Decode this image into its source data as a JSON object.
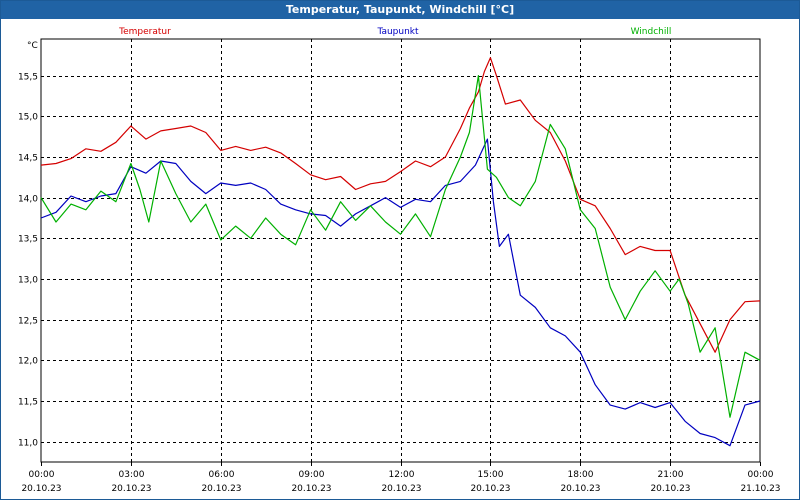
{
  "title": "Temperatur, Taupunkt, Windchill [°C]",
  "chart_data": {
    "type": "line",
    "ylabel": "°C",
    "ylim": [
      10.75,
      15.95
    ],
    "yticks": [
      11.0,
      11.5,
      12.0,
      12.5,
      13.0,
      13.5,
      14.0,
      14.5,
      15.0,
      15.5
    ],
    "ytick_labels": [
      "11,0",
      "11,5",
      "12,0",
      "12,5",
      "13,0",
      "13,5",
      "14,0",
      "14,5",
      "15,0",
      "15,5"
    ],
    "xlim": [
      0,
      24
    ],
    "xticks": [
      {
        "time": "00:00",
        "date": "20.10.23"
      },
      {
        "time": "03:00",
        "date": "20.10.23"
      },
      {
        "time": "06:00",
        "date": "20.10.23"
      },
      {
        "time": "09:00",
        "date": "20.10.23"
      },
      {
        "time": "12:00",
        "date": "20.10.23"
      },
      {
        "time": "15:00",
        "date": "20.10.23"
      },
      {
        "time": "18:00",
        "date": "20.10.23"
      },
      {
        "time": "21:00",
        "date": "20.10.23"
      },
      {
        "time": "00:00",
        "date": "21.10.23"
      }
    ],
    "grid": true,
    "series": [
      {
        "name": "Temperatur",
        "color": "#d40000",
        "x": [
          0,
          0.5,
          1,
          1.5,
          2,
          2.5,
          3,
          3.5,
          4,
          4.5,
          5,
          5.5,
          6,
          6.5,
          7,
          7.5,
          8,
          8.5,
          9,
          9.5,
          10,
          10.5,
          11,
          11.5,
          12,
          12.5,
          13,
          13.5,
          14,
          14.3,
          14.6,
          14.8,
          15,
          15.2,
          15.5,
          16,
          16.5,
          17,
          17.5,
          18,
          18.5,
          19,
          19.5,
          20,
          20.5,
          21,
          21.5,
          22,
          22.5,
          23,
          23.5,
          24
        ],
        "values": [
          14.4,
          14.42,
          14.48,
          14.6,
          14.57,
          14.68,
          14.88,
          14.72,
          14.82,
          14.85,
          14.88,
          14.8,
          14.58,
          14.63,
          14.58,
          14.62,
          14.55,
          14.42,
          14.28,
          14.22,
          14.26,
          14.1,
          14.17,
          14.2,
          14.32,
          14.45,
          14.38,
          14.5,
          14.85,
          15.1,
          15.3,
          15.55,
          15.72,
          15.5,
          15.15,
          15.2,
          14.95,
          14.8,
          14.45,
          13.98,
          13.9,
          13.62,
          13.3,
          13.4,
          13.35,
          13.35,
          12.8,
          12.45,
          12.1,
          12.5,
          12.72,
          12.73
        ]
      },
      {
        "name": "Taupunkt",
        "color": "#0000c0",
        "x": [
          0,
          0.5,
          1,
          1.5,
          2,
          2.5,
          3,
          3.5,
          4,
          4.5,
          5,
          5.5,
          6,
          6.5,
          7,
          7.5,
          8,
          8.5,
          9,
          9.5,
          10,
          10.5,
          11,
          11.5,
          12,
          12.5,
          13,
          13.5,
          14,
          14.5,
          14.9,
          15.1,
          15.3,
          15.6,
          16,
          16.5,
          17,
          17.5,
          18,
          18.5,
          19,
          19.5,
          20,
          20.5,
          21,
          21.5,
          22,
          22.5,
          23,
          23.5,
          24
        ],
        "values": [
          13.75,
          13.82,
          14.02,
          13.95,
          14.02,
          14.05,
          14.38,
          14.3,
          14.45,
          14.42,
          14.2,
          14.05,
          14.18,
          14.15,
          14.18,
          14.1,
          13.92,
          13.85,
          13.8,
          13.78,
          13.65,
          13.8,
          13.9,
          14.0,
          13.88,
          13.98,
          13.95,
          14.15,
          14.2,
          14.4,
          14.72,
          13.95,
          13.4,
          13.55,
          12.8,
          12.65,
          12.4,
          12.3,
          12.1,
          11.7,
          11.45,
          11.4,
          11.48,
          11.42,
          11.48,
          11.25,
          11.1,
          11.05,
          10.95,
          11.45,
          11.5
        ]
      },
      {
        "name": "Windchill",
        "color": "#00b000",
        "x": [
          0,
          0.5,
          1,
          1.5,
          2,
          2.5,
          3,
          3.3,
          3.6,
          4,
          4.5,
          5,
          5.5,
          6,
          6.5,
          7,
          7.5,
          8,
          8.5,
          9,
          9.5,
          10,
          10.5,
          11,
          11.5,
          12,
          12.5,
          13,
          13.5,
          14,
          14.3,
          14.6,
          14.9,
          15.2,
          15.6,
          16,
          16.5,
          17,
          17.5,
          18,
          18.5,
          19,
          19.5,
          20,
          20.5,
          21,
          21.3,
          21.6,
          22,
          22.5,
          23,
          23.5,
          24
        ],
        "values": [
          14.0,
          13.7,
          13.92,
          13.85,
          14.08,
          13.95,
          14.42,
          14.1,
          13.7,
          14.45,
          14.05,
          13.7,
          13.92,
          13.48,
          13.65,
          13.5,
          13.75,
          13.55,
          13.42,
          13.85,
          13.6,
          13.95,
          13.72,
          13.9,
          13.7,
          13.55,
          13.8,
          13.52,
          14.1,
          14.5,
          14.8,
          15.5,
          14.35,
          14.25,
          14.0,
          13.9,
          14.2,
          14.9,
          14.6,
          13.85,
          13.62,
          12.9,
          12.5,
          12.85,
          13.1,
          12.85,
          13.0,
          12.7,
          12.1,
          12.4,
          11.3,
          12.1,
          12.0
        ]
      }
    ]
  }
}
